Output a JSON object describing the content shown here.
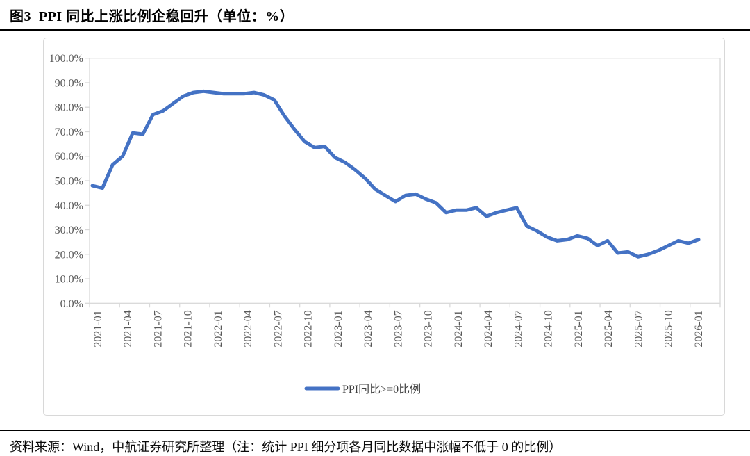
{
  "page": {
    "title": "图3  PPI 同比上涨比例企稳回升（单位：%）",
    "source_note": "资料来源：Wind，中航证券研究所整理（注：统计 PPI 细分项各月同比数据中涨幅不低于 0 的比例）"
  },
  "chart_data": {
    "type": "line",
    "title": "PPI 同比上涨比例企稳回升",
    "unit": "%",
    "legend": "PPI同比>=0比例",
    "legend_position": "bottom-center",
    "grid": false,
    "ylim": [
      0,
      100
    ],
    "y_tick_labels": [
      "100.0%",
      "90.0%",
      "80.0%",
      "70.0%",
      "60.0%",
      "50.0%",
      "40.0%",
      "30.0%",
      "20.0%",
      "10.0%",
      "0.0%"
    ],
    "x_tick_labels": [
      "2021-01",
      "2021-04",
      "2021-07",
      "2021-10",
      "2022-01",
      "2022-04",
      "2022-07",
      "2022-10",
      "2023-01",
      "2023-04",
      "2023-07",
      "2023-10",
      "2024-01",
      "2024-04",
      "2024-07",
      "2024-10",
      "2025-01",
      "2025-04",
      "2025-07",
      "2025-10",
      "2026-01"
    ],
    "x": [
      "2021-01",
      "2021-02",
      "2021-03",
      "2021-04",
      "2021-05",
      "2021-06",
      "2021-07",
      "2021-08",
      "2021-09",
      "2021-10",
      "2021-11",
      "2021-12",
      "2022-01",
      "2022-02",
      "2022-03",
      "2022-04",
      "2022-05",
      "2022-06",
      "2022-07",
      "2022-08",
      "2022-09",
      "2022-10",
      "2022-11",
      "2022-12",
      "2023-01",
      "2023-02",
      "2023-03",
      "2023-04",
      "2023-05",
      "2023-06",
      "2023-07",
      "2023-08",
      "2023-09",
      "2023-10",
      "2023-11",
      "2023-12",
      "2024-01",
      "2024-02",
      "2024-03",
      "2024-04",
      "2024-05",
      "2024-06",
      "2024-07",
      "2024-08",
      "2024-09",
      "2024-10",
      "2024-11",
      "2024-12",
      "2025-01",
      "2025-02",
      "2025-03",
      "2025-04",
      "2025-05",
      "2025-06",
      "2025-07",
      "2025-08",
      "2025-09",
      "2025-10",
      "2025-11",
      "2025-12",
      "2026-01"
    ],
    "series": [
      {
        "name": "PPI同比>=0比例",
        "values": [
          48,
          47,
          56.5,
          60,
          69.5,
          69,
          77,
          78.5,
          81.5,
          84.5,
          86,
          86.5,
          86,
          85.5,
          85.5,
          85.5,
          86,
          85,
          83,
          76.5,
          71,
          66,
          63.5,
          64,
          59.5,
          57.5,
          54.5,
          51,
          46.5,
          44,
          41.5,
          44,
          44.5,
          42.5,
          41,
          37,
          38,
          38,
          39,
          35.5,
          37,
          38,
          39,
          31.5,
          29.5,
          27,
          25.5,
          26,
          27.5,
          26.5,
          23.5,
          25.5,
          20.5,
          21,
          19,
          20,
          21.5,
          23.5,
          25.5,
          24.5,
          26
        ]
      }
    ],
    "colors": {
      "line": "#4472C4",
      "axis": "#D9D9D9",
      "tick_label": "#595959",
      "legend_text": "#404040"
    }
  }
}
